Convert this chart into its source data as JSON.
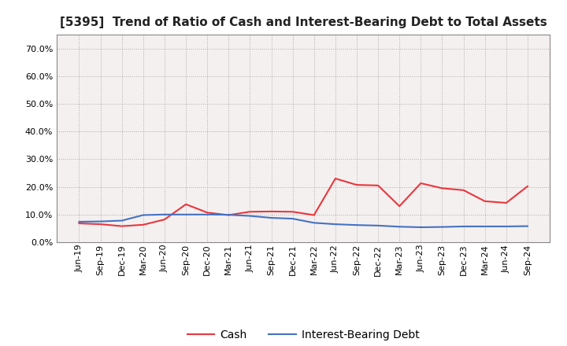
{
  "title": "[5395]  Trend of Ratio of Cash and Interest-Bearing Debt to Total Assets",
  "x_labels": [
    "Jun-19",
    "Sep-19",
    "Dec-19",
    "Mar-20",
    "Jun-20",
    "Sep-20",
    "Dec-20",
    "Mar-21",
    "Jun-21",
    "Sep-21",
    "Dec-21",
    "Mar-22",
    "Jun-22",
    "Sep-22",
    "Dec-22",
    "Mar-23",
    "Jun-23",
    "Sep-23",
    "Dec-23",
    "Mar-24",
    "Jun-24",
    "Sep-24"
  ],
  "cash": [
    0.068,
    0.065,
    0.058,
    0.063,
    0.082,
    0.137,
    0.107,
    0.098,
    0.11,
    0.111,
    0.11,
    0.098,
    0.23,
    0.207,
    0.205,
    0.13,
    0.213,
    0.195,
    0.188,
    0.148,
    0.142,
    0.202
  ],
  "debt": [
    0.074,
    0.075,
    0.078,
    0.098,
    0.1,
    0.1,
    0.1,
    0.099,
    0.095,
    0.088,
    0.085,
    0.07,
    0.065,
    0.062,
    0.06,
    0.056,
    0.054,
    0.055,
    0.057,
    0.057,
    0.057,
    0.058
  ],
  "cash_color": "#e8373d",
  "debt_color": "#4472c4",
  "ylim": [
    0.0,
    0.75
  ],
  "yticks": [
    0.0,
    0.1,
    0.2,
    0.3,
    0.4,
    0.5,
    0.6,
    0.7
  ],
  "legend_cash": "Cash",
  "legend_debt": "Interest-Bearing Debt",
  "background_color": "#ffffff",
  "plot_bg_color": "#f5f0f0",
  "grid_color": "#aaaaaa",
  "title_fontsize": 11,
  "axis_fontsize": 8,
  "legend_fontsize": 10
}
